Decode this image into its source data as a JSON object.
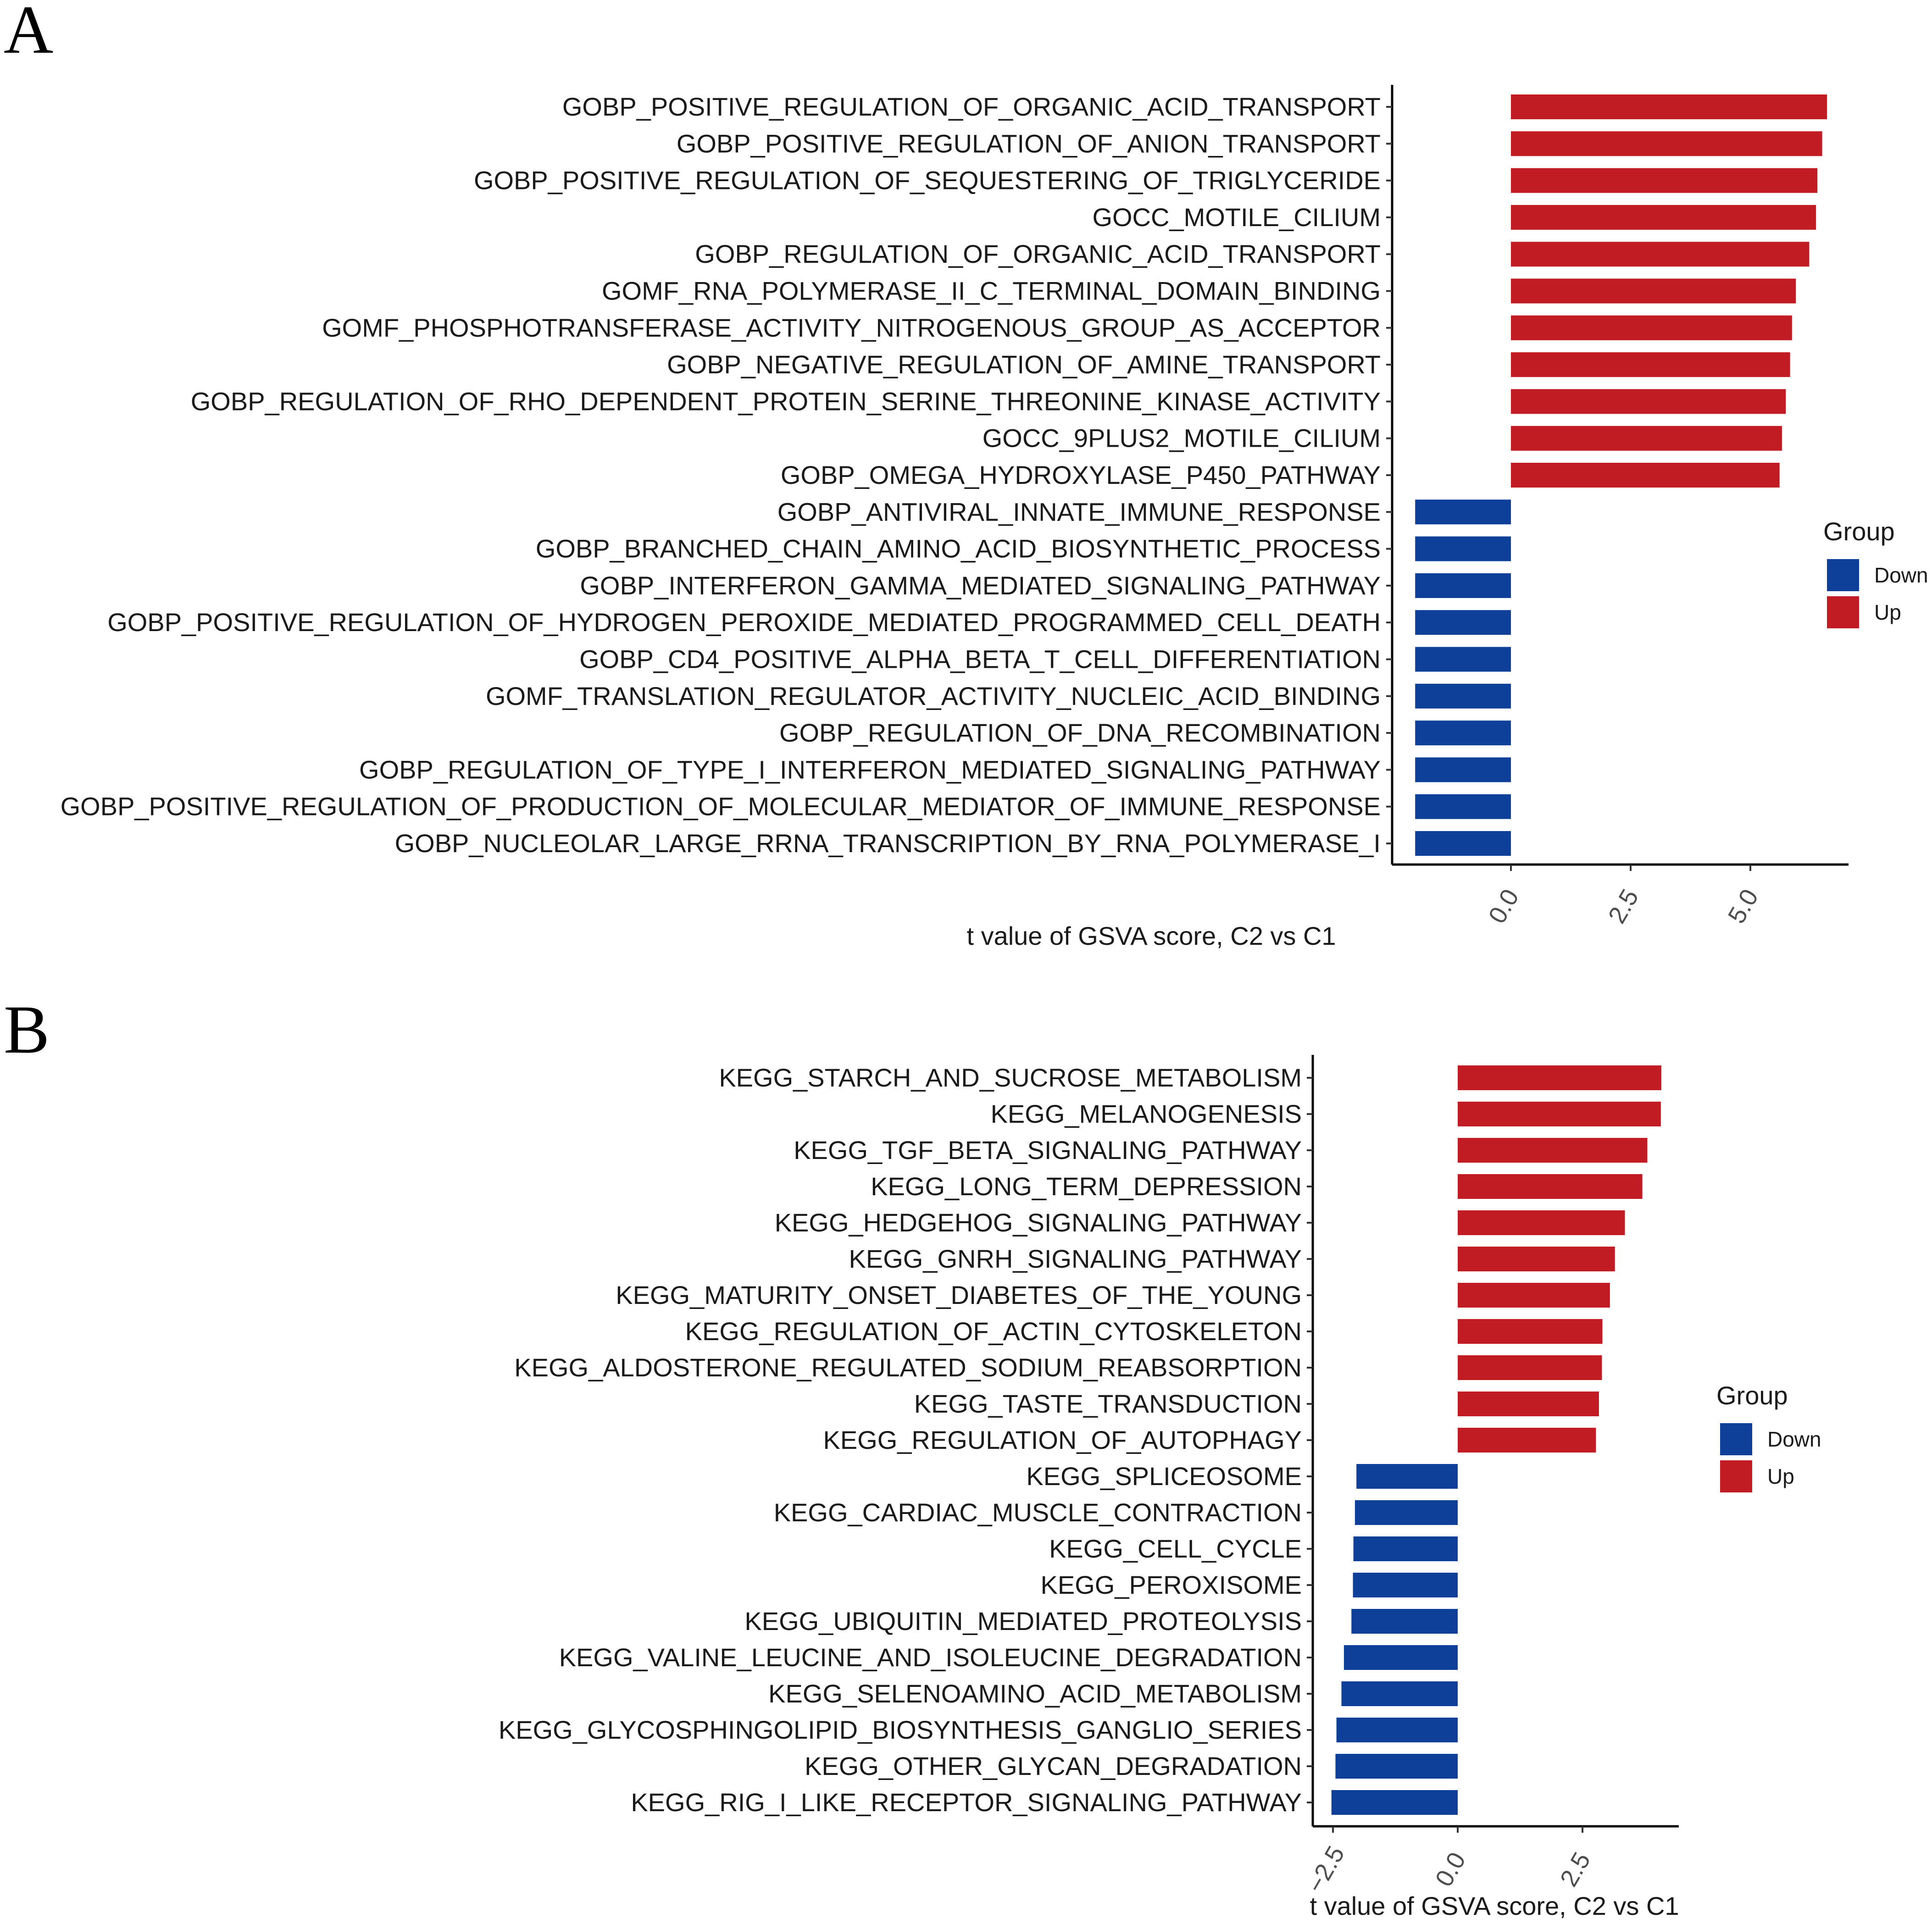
{
  "colors": {
    "Down": "#0e3f99",
    "Up": "#c11b23"
  },
  "chart_data": [
    {
      "panel": "A",
      "type": "bar",
      "orientation": "horizontal",
      "xlabel": "t value of GSVA score, C2 vs C1",
      "xticks": [
        0.0,
        2.5,
        5.0
      ],
      "xtick_labels": [
        "0.0",
        "2.5",
        "5.0"
      ],
      "xlim": [
        -2.7,
        7.0
      ],
      "legend": {
        "title": "Group",
        "placement": "right",
        "entries": [
          "Down",
          "Up"
        ]
      },
      "categories": [
        "GOBP_POSITIVE_REGULATION_OF_ORGANIC_ACID_TRANSPORT",
        "GOBP_POSITIVE_REGULATION_OF_ANION_TRANSPORT",
        "GOBP_POSITIVE_REGULATION_OF_SEQUESTERING_OF_TRIGLYCERIDE",
        "GOCC_MOTILE_CILIUM",
        "GOBP_REGULATION_OF_ORGANIC_ACID_TRANSPORT",
        "GOMF_RNA_POLYMERASE_II_C_TERMINAL_DOMAIN_BINDING",
        "GOMF_PHOSPHOTRANSFERASE_ACTIVITY_NITROGENOUS_GROUP_AS_ACCEPTOR",
        "GOBP_NEGATIVE_REGULATION_OF_AMINE_TRANSPORT",
        "GOBP_REGULATION_OF_RHO_DEPENDENT_PROTEIN_SERINE_THREONINE_KINASE_ACTIVITY",
        "GOCC_9PLUS2_MOTILE_CILIUM",
        "GOBP_OMEGA_HYDROXYLASE_P450_PATHWAY",
        "GOBP_ANTIVIRAL_INNATE_IMMUNE_RESPONSE",
        "GOBP_BRANCHED_CHAIN_AMINO_ACID_BIOSYNTHETIC_PROCESS",
        "GOBP_INTERFERON_GAMMA_MEDIATED_SIGNALING_PATHWAY",
        "GOBP_POSITIVE_REGULATION_OF_HYDROGEN_PEROXIDE_MEDIATED_PROGRAMMED_CELL_DEATH",
        "GOBP_CD4_POSITIVE_ALPHA_BETA_T_CELL_DIFFERENTIATION",
        "GOMF_TRANSLATION_REGULATOR_ACTIVITY_NUCLEIC_ACID_BINDING",
        "GOBP_REGULATION_OF_DNA_RECOMBINATION",
        "GOBP_REGULATION_OF_TYPE_I_INTERFERON_MEDIATED_SIGNALING_PATHWAY",
        "GOBP_POSITIVE_REGULATION_OF_PRODUCTION_OF_MOLECULAR_MEDIATOR_OF_IMMUNE_RESPONSE",
        "GOBP_NUCLEOLAR_LARGE_RRNA_TRANSCRIPTION_BY_RNA_POLYMERASE_I"
      ],
      "values": [
        6.6,
        6.5,
        6.4,
        6.37,
        6.23,
        5.95,
        5.87,
        5.83,
        5.74,
        5.66,
        5.61,
        -2.0,
        -2.0,
        -2.0,
        -2.0,
        -2.0,
        -2.0,
        -2.0,
        -2.0,
        -2.0,
        -2.0
      ],
      "groups": [
        "Up",
        "Up",
        "Up",
        "Up",
        "Up",
        "Up",
        "Up",
        "Up",
        "Up",
        "Up",
        "Up",
        "Down",
        "Down",
        "Down",
        "Down",
        "Down",
        "Down",
        "Down",
        "Down",
        "Down",
        "Down"
      ]
    },
    {
      "panel": "B",
      "type": "bar",
      "orientation": "horizontal",
      "xlabel": "t value of GSVA score, C2 vs C1",
      "xticks": [
        -2.5,
        0.0,
        2.5
      ],
      "xtick_labels": [
        "−2.5",
        "0.0",
        "2.5"
      ],
      "xlim": [
        -3.1,
        4.6
      ],
      "legend": {
        "title": "Group",
        "placement": "right",
        "entries": [
          "Down",
          "Up"
        ]
      },
      "categories": [
        "KEGG_STARCH_AND_SUCROSE_METABOLISM",
        "KEGG_MELANOGENESIS",
        "KEGG_TGF_BETA_SIGNALING_PATHWAY",
        "KEGG_LONG_TERM_DEPRESSION",
        "KEGG_HEDGEHOG_SIGNALING_PATHWAY",
        "KEGG_GNRH_SIGNALING_PATHWAY",
        "KEGG_MATURITY_ONSET_DIABETES_OF_THE_YOUNG",
        "KEGG_REGULATION_OF_ACTIN_CYTOSKELETON",
        "KEGG_ALDOSTERONE_REGULATED_SODIUM_REABSORPTION",
        "KEGG_TASTE_TRANSDUCTION",
        "KEGG_REGULATION_OF_AUTOPHAGY",
        "KEGG_SPLICEOSOME",
        "KEGG_CARDIAC_MUSCLE_CONTRACTION",
        "KEGG_CELL_CYCLE",
        "KEGG_PEROXISOME",
        "KEGG_UBIQUITIN_MEDIATED_PROTEOLYSIS",
        "KEGG_VALINE_LEUCINE_AND_ISOLEUCINE_DEGRADATION",
        "KEGG_SELENOAMINO_ACID_METABOLISM",
        "KEGG_GLYCOSPHINGOLIPID_BIOSYNTHESIS_GANGLIO_SERIES",
        "KEGG_OTHER_GLYCAN_DEGRADATION",
        "KEGG_RIG_I_LIKE_RECEPTOR_SIGNALING_PATHWAY"
      ],
      "values": [
        4.08,
        4.07,
        3.8,
        3.7,
        3.35,
        3.15,
        3.05,
        2.9,
        2.89,
        2.83,
        2.77,
        -2.03,
        -2.06,
        -2.09,
        -2.1,
        -2.13,
        -2.28,
        -2.33,
        -2.43,
        -2.45,
        -2.53
      ],
      "groups": [
        "Up",
        "Up",
        "Up",
        "Up",
        "Up",
        "Up",
        "Up",
        "Up",
        "Up",
        "Up",
        "Up",
        "Down",
        "Down",
        "Down",
        "Down",
        "Down",
        "Down",
        "Down",
        "Down",
        "Down",
        "Down"
      ]
    }
  ]
}
